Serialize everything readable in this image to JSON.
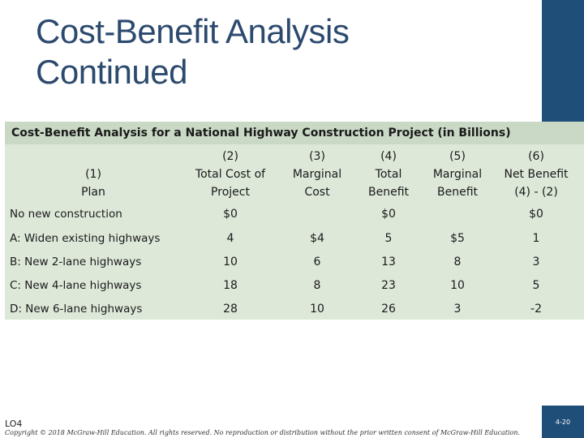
{
  "title": {
    "line1": "Cost-Benefit Analysis",
    "line2": "Continued"
  },
  "table": {
    "caption": "Cost-Benefit Analysis for a National Highway Construction Project (in Billions)",
    "headers": [
      {
        "lines": [
          "",
          "(1)",
          "Plan"
        ]
      },
      {
        "lines": [
          "(2)",
          "Total Cost of",
          "Project"
        ]
      },
      {
        "lines": [
          "(3)",
          "Marginal",
          "Cost"
        ]
      },
      {
        "lines": [
          "(4)",
          "Total",
          "Benefit"
        ]
      },
      {
        "lines": [
          "(5)",
          "Marginal",
          "Benefit"
        ]
      },
      {
        "lines": [
          "(6)",
          "Net Benefit",
          "(4) - (2)"
        ]
      }
    ],
    "rows": [
      {
        "plan": "No new construction",
        "total_cost": "$0",
        "marginal_cost": "",
        "total_benefit": "$0",
        "marginal_benefit": "",
        "net_benefit": "$0"
      },
      {
        "plan": "A: Widen existing highways",
        "total_cost": "4",
        "marginal_cost": "$4",
        "total_benefit": "5",
        "marginal_benefit": "$5",
        "net_benefit": "1"
      },
      {
        "plan": "B: New 2-lane highways",
        "total_cost": "10",
        "marginal_cost": "6",
        "total_benefit": "13",
        "marginal_benefit": "8",
        "net_benefit": "3"
      },
      {
        "plan": "C: New 4-lane highways",
        "total_cost": "18",
        "marginal_cost": "8",
        "total_benefit": "23",
        "marginal_benefit": "10",
        "net_benefit": "5"
      },
      {
        "plan": "D: New 6-lane highways",
        "total_cost": "28",
        "marginal_cost": "10",
        "total_benefit": "26",
        "marginal_benefit": "3",
        "net_benefit": "-2"
      }
    ]
  },
  "footer": {
    "lo": "LO4",
    "copyright": "Copyright © 2018 McGraw-Hill Education. All rights reserved. No reproduction or distribution without the prior written consent of McGraw-Hill Education.",
    "page": "4-20"
  },
  "colors": {
    "accent": "#1f4e79",
    "title": "#2c4a6e",
    "table_bg": "#dde8d9",
    "caption_bg": "#c9d9c5"
  }
}
